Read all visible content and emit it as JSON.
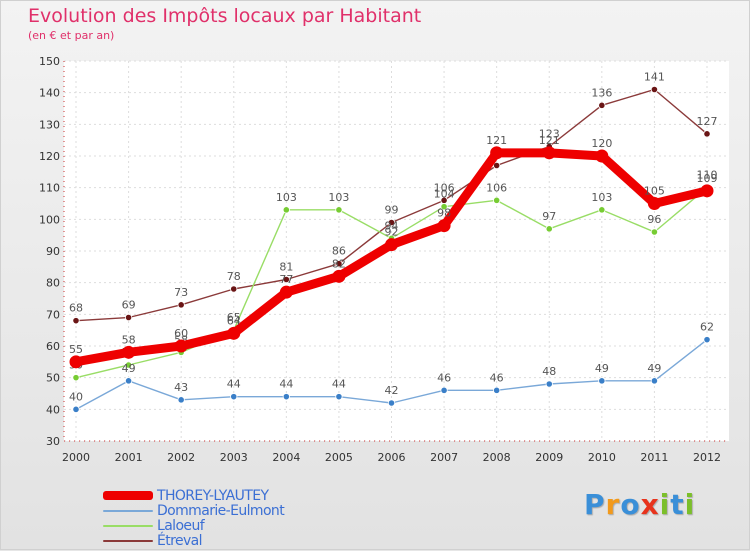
{
  "chart_data": {
    "type": "line",
    "title": "Evolution des Impôts locaux par Habitant",
    "subtitle": "(en € et par an)",
    "xlabel": "",
    "ylabel": "",
    "ylim": [
      30,
      150
    ],
    "yticks": [
      30,
      40,
      50,
      60,
      70,
      80,
      90,
      100,
      110,
      120,
      130,
      140,
      150
    ],
    "x": [
      "2000",
      "2001",
      "2002",
      "2003",
      "2004",
      "2005",
      "2006",
      "2007",
      "2008",
      "2009",
      "2010",
      "2011",
      "2012"
    ],
    "legend_position": "bottom-left",
    "series": [
      {
        "name": "Étreval",
        "color": "#8b3a3a",
        "marker": "#6a1515",
        "values": [
          68,
          69,
          73,
          78,
          81,
          86,
          99,
          106,
          117,
          123,
          136,
          141,
          127
        ],
        "labels": [
          "68",
          "69",
          "73",
          "78",
          "81",
          "86",
          "99",
          "106",
          "",
          "123",
          "136",
          "141",
          "127"
        ]
      },
      {
        "name": "Laloeuf",
        "color": "#99dd66",
        "marker": "#77cc33",
        "values": [
          50,
          54,
          58,
          65,
          103,
          103,
          94,
          104,
          106,
          97,
          103,
          96,
          110
        ],
        "labels": [
          "50",
          "54",
          "58",
          "65",
          "103",
          "103",
          "94",
          "104",
          "106",
          "97",
          "103",
          "96",
          "110"
        ]
      },
      {
        "name": "Dommarie-Eulmont",
        "color": "#7aa8d8",
        "marker": "#3a7fc8",
        "values": [
          40,
          49,
          43,
          44,
          44,
          44,
          42,
          46,
          46,
          48,
          49,
          49,
          62
        ],
        "labels": [
          "40",
          "49",
          "43",
          "44",
          "44",
          "44",
          "42",
          "46",
          "46",
          "48",
          "49",
          "49",
          "62"
        ]
      },
      {
        "name": "THOREY-LYAUTEY",
        "color": "#ee0000",
        "marker": "#ee0000",
        "values": [
          55,
          58,
          60,
          64,
          77,
          82,
          92,
          98,
          121,
          121,
          120,
          105,
          109
        ],
        "labels": [
          "55",
          "58",
          "60",
          "64",
          "77",
          "82",
          "92",
          "98",
          "121",
          "121",
          "120",
          "105",
          "109"
        ]
      }
    ]
  },
  "legend": {
    "items": [
      {
        "label": "THOREY-LYAUTEY",
        "color": "#ee0000"
      },
      {
        "label": "Dommarie-Eulmont",
        "color": "#7aa8d8"
      },
      {
        "label": "Laloeuf",
        "color": "#99dd66"
      },
      {
        "label": "Étreval",
        "color": "#8b3a3a"
      }
    ]
  },
  "logo": {
    "letters": [
      "P",
      "r",
      "o",
      "x",
      "i",
      "t",
      "i"
    ],
    "colors": [
      "#3a8fd8",
      "#f29a1c",
      "#3a8fd8",
      "#e8331c",
      "#7bbf2a",
      "#3a8fd8",
      "#7bbf2a"
    ]
  }
}
